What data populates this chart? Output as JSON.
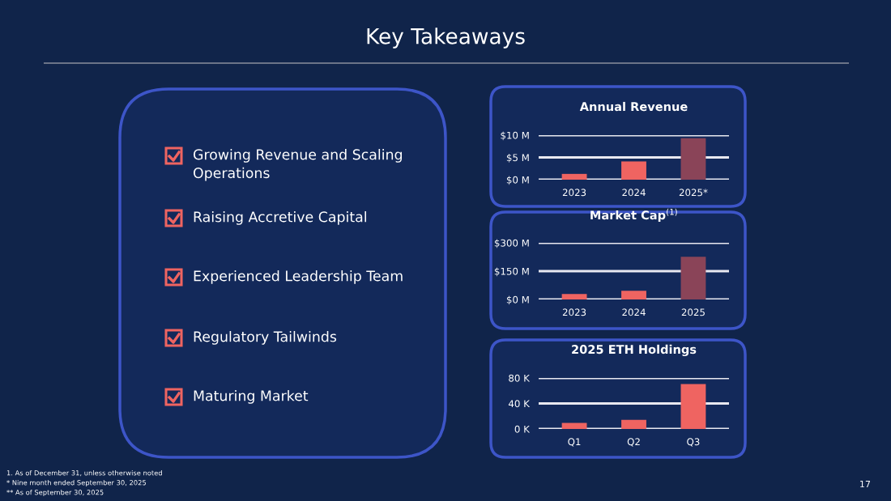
{
  "chart_data": [
    {
      "type": "other",
      "title": "Key Takeaways",
      "annotations": [
        "Growing Revenue and Scaling\nOperations",
        "Raising Accretive Capital",
        "Experienced Leadership Team",
        "Regulatory Tailwinds",
        "Maturing Market"
      ]
    },
    {
      "type": "bar",
      "title": "Annual Revenue",
      "categories": [
        "2023",
        "2024",
        "2025*"
      ],
      "values": [
        1.3,
        4.1,
        9.3
      ],
      "colors": [
        "#ef6461",
        "#ef6461",
        "#8a4458"
      ],
      "ylim": [
        0,
        10
      ],
      "yticks": [
        {
          "value": 0,
          "label": "$0 M"
        },
        {
          "value": 5,
          "label": "$5 M"
        },
        {
          "value": 10,
          "label": "$10 M"
        }
      ],
      "grid": "y"
    },
    {
      "type": "bar",
      "title": "Market Cap$^{(1)}$",
      "categories": [
        "2023",
        "2024",
        "2025"
      ],
      "values": [
        29,
        46,
        226
      ],
      "colors": [
        "#ef6461",
        "#ef6461",
        "#8a4458"
      ],
      "ylim": [
        0,
        300
      ],
      "yticks": [
        {
          "value": 0,
          "label": "$0 M"
        },
        {
          "value": 150,
          "label": "$150 M"
        },
        {
          "value": 300,
          "label": "$300 M"
        }
      ],
      "grid": "y"
    },
    {
      "type": "bar",
      "title": "2025 ETH Holdings",
      "categories": [
        "Q1",
        "Q2",
        "Q3"
      ],
      "values": [
        9.5,
        14.3,
        70.5
      ],
      "colors": [
        "#ef6461",
        "#ef6461",
        "#ef6461"
      ],
      "ylim": [
        0,
        80
      ],
      "yticks": [
        {
          "value": 0,
          "label": "0 K"
        },
        {
          "value": 40,
          "label": "40 K"
        },
        {
          "value": 80,
          "label": "80 K"
        }
      ],
      "grid": "y"
    },
    {
      "type": "other",
      "annotations": [
        "1. As of December 31, unless otherwise noted",
        "* Nine month ended September 30, 2025",
        "** As of September 30, 2025",
        "17"
      ]
    }
  ]
}
